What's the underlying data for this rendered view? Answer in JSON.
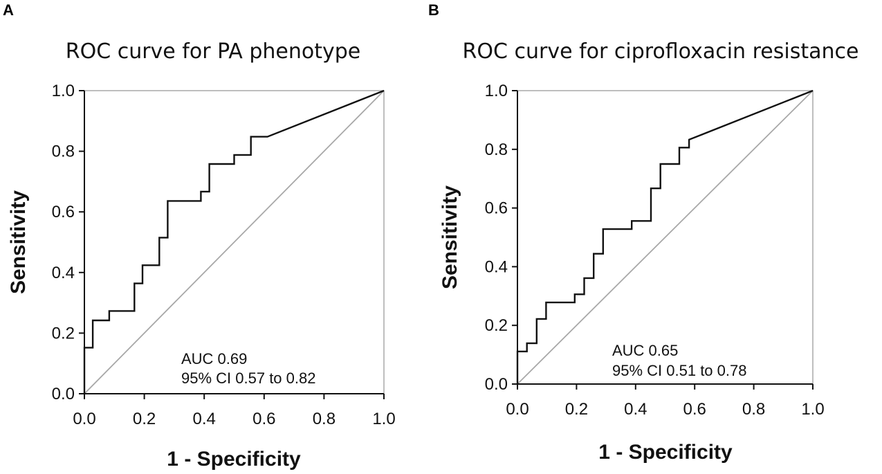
{
  "colors": {
    "curve": "#111111",
    "reference_line": "#a8a8a8",
    "frame": "#a8a8a8",
    "text": "#111111"
  },
  "chart_data": [
    {
      "panel": "A",
      "type": "line",
      "title": "ROC curve for PA phenotype",
      "xlabel": "1 - Specificity",
      "ylabel": "Sensitivity",
      "xlim": [
        0,
        1
      ],
      "ylim": [
        0,
        1
      ],
      "xticks": [
        "0.0",
        "0.2",
        "0.4",
        "0.6",
        "0.8",
        "1.0"
      ],
      "yticks": [
        "0.0",
        "0.2",
        "0.4",
        "0.6",
        "0.8",
        "1.0"
      ],
      "annotation": [
        "AUC 0.69",
        "95% CI 0.57 to 0.82"
      ],
      "series": [
        {
          "name": "ROC",
          "x": [
            0,
            0,
            0.028,
            0.028,
            0.083,
            0.083,
            0.167,
            0.167,
            0.194,
            0.194,
            0.25,
            0.25,
            0.278,
            0.278,
            0.389,
            0.389,
            0.417,
            0.417,
            0.5,
            0.5,
            0.556,
            0.556,
            0.611,
            1.0
          ],
          "y": [
            0,
            0.152,
            0.152,
            0.242,
            0.242,
            0.273,
            0.273,
            0.364,
            0.364,
            0.424,
            0.424,
            0.515,
            0.515,
            0.636,
            0.636,
            0.667,
            0.667,
            0.758,
            0.758,
            0.788,
            0.788,
            0.848,
            0.848,
            1.0
          ]
        },
        {
          "name": "Reference",
          "x": [
            0,
            1
          ],
          "y": [
            0,
            1
          ]
        }
      ]
    },
    {
      "panel": "B",
      "type": "line",
      "title": "ROC curve for ciprofloxacin resistance",
      "xlabel": "1 - Specificity",
      "ylabel": "Sensitivity",
      "xlim": [
        0,
        1
      ],
      "ylim": [
        0,
        1
      ],
      "xticks": [
        "0.0",
        "0.2",
        "0.4",
        "0.6",
        "0.8",
        "1.0"
      ],
      "yticks": [
        "0.0",
        "0.2",
        "0.4",
        "0.6",
        "0.8",
        "1.0"
      ],
      "annotation": [
        "AUC 0.65",
        "95% CI 0.51 to 0.78"
      ],
      "series": [
        {
          "name": "ROC",
          "x": [
            0,
            0,
            0.032,
            0.032,
            0.065,
            0.065,
            0.097,
            0.097,
            0.194,
            0.194,
            0.226,
            0.226,
            0.258,
            0.258,
            0.29,
            0.29,
            0.387,
            0.387,
            0.452,
            0.452,
            0.484,
            0.484,
            0.548,
            0.548,
            0.581,
            0.581,
            1.0
          ],
          "y": [
            0,
            0.111,
            0.111,
            0.139,
            0.139,
            0.222,
            0.222,
            0.278,
            0.278,
            0.306,
            0.306,
            0.361,
            0.361,
            0.444,
            0.444,
            0.528,
            0.528,
            0.556,
            0.556,
            0.667,
            0.667,
            0.75,
            0.75,
            0.806,
            0.806,
            0.833,
            1.0
          ]
        },
        {
          "name": "Reference",
          "x": [
            0,
            1
          ],
          "y": [
            0,
            1
          ]
        }
      ]
    }
  ]
}
